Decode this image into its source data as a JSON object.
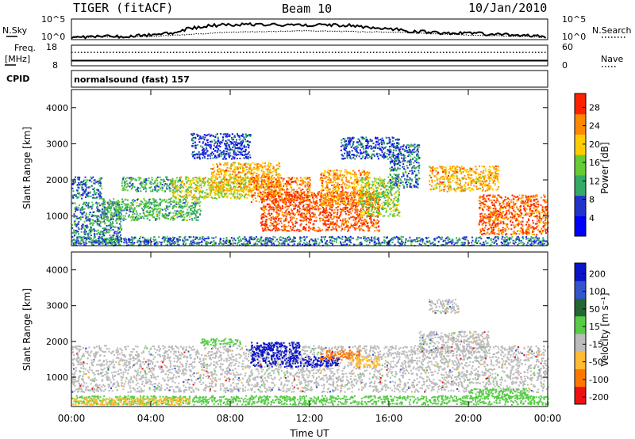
{
  "header": {
    "station": "TIGER (fitACF)",
    "beam": "Beam 10",
    "date": "10/Jan/2010"
  },
  "left_labels": {
    "nsky": "N.Sky",
    "freq": "Freq.",
    "freq_unit": "[MHz]",
    "cpid": "CPID"
  },
  "right_labels": {
    "nsearch": "N.Search",
    "nave": "Nave"
  },
  "cpid_text": "normalsound (fast) 157",
  "chart_data": [
    {
      "type": "line",
      "name": "noise-panel",
      "y_left_ticks": [
        "10^5",
        "10^0"
      ],
      "y_right_ticks": [
        "10^5",
        "10^0"
      ],
      "series": [
        {
          "name": "N.Sky",
          "x_hours": [
            0,
            1,
            2,
            3,
            4,
            5,
            6,
            7,
            8,
            9,
            10,
            11,
            12,
            13,
            14,
            15,
            16,
            17,
            18,
            19,
            20,
            21,
            22,
            23,
            24
          ],
          "level": [
            0.1,
            0.12,
            0.12,
            0.15,
            0.2,
            0.3,
            0.55,
            0.7,
            0.75,
            0.78,
            0.75,
            0.72,
            0.72,
            0.75,
            0.7,
            0.6,
            0.55,
            0.4,
            0.35,
            0.3,
            0.3,
            0.25,
            0.2,
            0.15,
            0.1
          ]
        },
        {
          "name": "N.Search",
          "x_hours": [
            0,
            4,
            8,
            12,
            16,
            20,
            24
          ],
          "level": [
            0.08,
            0.12,
            0.35,
            0.42,
            0.35,
            0.2,
            0.08
          ]
        }
      ]
    },
    {
      "type": "line",
      "name": "freq-nave-panel",
      "y_left_ticks": [
        8,
        18
      ],
      "y_right_ticks": [
        0,
        60
      ],
      "series": [
        {
          "name": "Freq.",
          "x_hours": [
            0,
            24
          ],
          "y": [
            10.5,
            10.5
          ]
        },
        {
          "name": "Nave",
          "x_hours": [
            0,
            24
          ],
          "y": [
            39,
            39
          ]
        }
      ]
    },
    {
      "type": "heatmap",
      "name": "power",
      "ylabel": "Slant Range [km]",
      "ylim": [
        180,
        4500
      ],
      "y_ticks": [
        1000,
        2000,
        3000,
        4000
      ],
      "xlim": [
        0,
        24
      ],
      "colorbar": {
        "label": "Power [dB]",
        "ticks": [
          4,
          8,
          12,
          16,
          20,
          24,
          28
        ],
        "range": [
          0,
          31
        ],
        "colors": [
          "#0000ff",
          "#2233cc",
          "#33aa66",
          "#66cc33",
          "#ffcc00",
          "#ff8800",
          "#ff2200"
        ]
      },
      "bands": [
        {
          "t0": 0.0,
          "t1": 2.5,
          "r0": 250,
          "r1": 1400,
          "v": 10
        },
        {
          "t0": 0.0,
          "t1": 1.5,
          "r0": 1500,
          "r1": 2100,
          "v": 9
        },
        {
          "t0": 1.5,
          "t1": 6.5,
          "r0": 900,
          "r1": 1500,
          "v": 13
        },
        {
          "t0": 2.5,
          "t1": 5.5,
          "r0": 1700,
          "r1": 2100,
          "v": 12
        },
        {
          "t0": 5.0,
          "t1": 9.0,
          "r0": 1500,
          "r1": 2100,
          "v": 18
        },
        {
          "t0": 7.0,
          "t1": 10.5,
          "r0": 1700,
          "r1": 2500,
          "v": 22
        },
        {
          "t0": 9.0,
          "t1": 12.0,
          "r0": 1400,
          "r1": 2100,
          "v": 25
        },
        {
          "t0": 9.5,
          "t1": 15.5,
          "r0": 600,
          "r1": 1700,
          "v": 27
        },
        {
          "t0": 12.5,
          "t1": 15.0,
          "r0": 1300,
          "r1": 2300,
          "v": 23
        },
        {
          "t0": 14.5,
          "t1": 16.5,
          "r0": 1000,
          "r1": 2100,
          "v": 16
        },
        {
          "t0": 16.0,
          "t1": 17.5,
          "r0": 1800,
          "r1": 3000,
          "v": 9
        },
        {
          "t0": 18.0,
          "t1": 21.5,
          "r0": 1700,
          "r1": 2400,
          "v": 22
        },
        {
          "t0": 20.5,
          "t1": 24.0,
          "r0": 500,
          "r1": 1600,
          "v": 26
        },
        {
          "t0": 6.0,
          "t1": 9.0,
          "r0": 2600,
          "r1": 3300,
          "v": 6
        },
        {
          "t0": 13.5,
          "t1": 16.5,
          "r0": 2600,
          "r1": 3200,
          "v": 7
        },
        {
          "t0": 0.0,
          "t1": 24.0,
          "r0": 200,
          "r1": 450,
          "v": 9
        }
      ]
    },
    {
      "type": "heatmap",
      "name": "velocity",
      "ylabel": "Slant Range [km]",
      "ylim": [
        180,
        4500
      ],
      "y_ticks": [
        1000,
        2000,
        3000,
        4000
      ],
      "xlim": [
        0,
        24
      ],
      "x_ticks": [
        "00:00",
        "04:00",
        "08:00",
        "12:00",
        "16:00",
        "20:00",
        "00:00"
      ],
      "xlabel": "Time UT",
      "colorbar": {
        "label": "Velocity [m s⁻¹]",
        "ticks": [
          "200",
          "100",
          "50",
          "15",
          "-15",
          "-50",
          "-100",
          "-200"
        ],
        "colors": [
          "#0a14c8",
          "#3355cc",
          "#226633",
          "#55cc44",
          "#bbbbbb",
          "#ffbb33",
          "#ff7700",
          "#ee1111"
        ]
      },
      "bands": [
        {
          "t0": 0.0,
          "t1": 24.0,
          "r0": 600,
          "r1": 1900,
          "v": "gray"
        },
        {
          "t0": 0.0,
          "t1": 24.0,
          "r0": 250,
          "r1": 500,
          "v": "lightgreen"
        },
        {
          "t0": 0.0,
          "t1": 6.0,
          "r0": 250,
          "r1": 450,
          "v": "yellow"
        },
        {
          "t0": 6.5,
          "t1": 8.5,
          "r0": 1900,
          "r1": 2100,
          "v": "lightgreen"
        },
        {
          "t0": 9.0,
          "t1": 11.5,
          "r0": 1300,
          "r1": 2000,
          "v": "blue"
        },
        {
          "t0": 11.5,
          "t1": 13.5,
          "r0": 1300,
          "r1": 1600,
          "v": "blue"
        },
        {
          "t0": 12.5,
          "t1": 14.5,
          "r0": 1500,
          "r1": 1800,
          "v": "orange"
        },
        {
          "t0": 14.0,
          "t1": 15.5,
          "r0": 1300,
          "r1": 1600,
          "v": "yellow"
        },
        {
          "t0": 17.5,
          "t1": 21.0,
          "r0": 1700,
          "r1": 2300,
          "v": "gray"
        },
        {
          "t0": 18.0,
          "t1": 19.5,
          "r0": 2800,
          "r1": 3200,
          "v": "gray"
        },
        {
          "t0": 20.0,
          "t1": 23.0,
          "r0": 400,
          "r1": 700,
          "v": "lightgreen"
        }
      ]
    }
  ]
}
